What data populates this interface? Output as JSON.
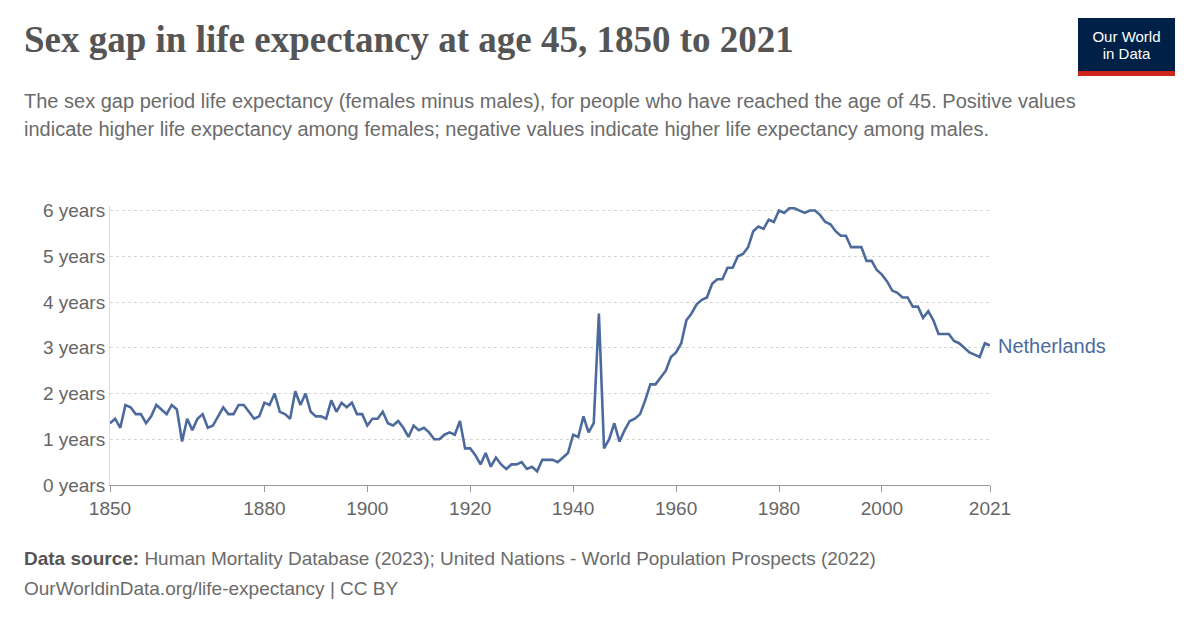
{
  "chart_data": {
    "type": "line",
    "title": "Sex gap in life expectancy at age 45, 1850 to 2021",
    "subtitle": "The sex gap period life expectancy (females minus males), for people who have reached the age of 45. Positive values indicate higher life expectancy among females; negative values indicate higher life expectancy among males.",
    "logo": [
      "Our World",
      "in Data"
    ],
    "source_label": "Data source:",
    "source": "Human Mortality Database (2023); United Nations - World Population Prospects (2022)",
    "footer": "OurWorldinData.org/life-expectancy | CC BY",
    "grid": true,
    "x": [
      1850,
      1851,
      1852,
      1853,
      1854,
      1855,
      1856,
      1857,
      1858,
      1859,
      1860,
      1861,
      1862,
      1863,
      1864,
      1865,
      1866,
      1867,
      1868,
      1869,
      1870,
      1871,
      1872,
      1873,
      1874,
      1875,
      1876,
      1877,
      1878,
      1879,
      1880,
      1881,
      1882,
      1883,
      1884,
      1885,
      1886,
      1887,
      1888,
      1889,
      1890,
      1891,
      1892,
      1893,
      1894,
      1895,
      1896,
      1897,
      1898,
      1899,
      1900,
      1901,
      1902,
      1903,
      1904,
      1905,
      1906,
      1907,
      1908,
      1909,
      1910,
      1911,
      1912,
      1913,
      1914,
      1915,
      1916,
      1917,
      1918,
      1919,
      1920,
      1921,
      1922,
      1923,
      1924,
      1925,
      1926,
      1927,
      1928,
      1929,
      1930,
      1931,
      1932,
      1933,
      1934,
      1935,
      1936,
      1937,
      1938,
      1939,
      1940,
      1941,
      1942,
      1943,
      1944,
      1945,
      1946,
      1947,
      1948,
      1949,
      1950,
      1951,
      1952,
      1953,
      1954,
      1955,
      1956,
      1957,
      1958,
      1959,
      1960,
      1961,
      1962,
      1963,
      1964,
      1965,
      1966,
      1967,
      1968,
      1969,
      1970,
      1971,
      1972,
      1973,
      1974,
      1975,
      1976,
      1977,
      1978,
      1979,
      1980,
      1981,
      1982,
      1983,
      1984,
      1985,
      1986,
      1987,
      1988,
      1989,
      1990,
      1991,
      1992,
      1993,
      1994,
      1995,
      1996,
      1997,
      1998,
      1999,
      2000,
      2001,
      2002,
      2003,
      2004,
      2005,
      2006,
      2007,
      2008,
      2009,
      2010,
      2011,
      2012,
      2013,
      2014,
      2015,
      2016,
      2017,
      2018,
      2019,
      2020,
      2021
    ],
    "series": [
      {
        "name": "Netherlands",
        "color": "#4c6a9c",
        "line_style": "solid",
        "values": [
          1.35,
          1.45,
          1.25,
          1.75,
          1.7,
          1.55,
          1.55,
          1.35,
          1.5,
          1.75,
          1.65,
          1.55,
          1.75,
          1.65,
          0.95,
          1.45,
          1.2,
          1.45,
          1.55,
          1.25,
          1.3,
          1.5,
          1.7,
          1.55,
          1.55,
          1.75,
          1.75,
          1.6,
          1.45,
          1.5,
          1.8,
          1.75,
          2.0,
          1.6,
          1.55,
          1.45,
          2.05,
          1.75,
          2.0,
          1.6,
          1.5,
          1.5,
          1.45,
          1.85,
          1.6,
          1.8,
          1.7,
          1.8,
          1.55,
          1.55,
          1.3,
          1.45,
          1.45,
          1.6,
          1.35,
          1.3,
          1.4,
          1.25,
          1.05,
          1.3,
          1.2,
          1.25,
          1.15,
          1.0,
          1.0,
          1.1,
          1.15,
          1.1,
          1.4,
          0.8,
          0.8,
          0.65,
          0.45,
          0.7,
          0.4,
          0.6,
          0.45,
          0.35,
          0.45,
          0.45,
          0.5,
          0.35,
          0.4,
          0.3,
          0.55,
          0.55,
          0.55,
          0.5,
          0.6,
          0.7,
          1.1,
          1.05,
          1.5,
          1.15,
          1.35,
          3.75,
          0.8,
          1.0,
          1.35,
          0.95,
          1.2,
          1.4,
          1.45,
          1.55,
          1.85,
          2.2,
          2.2,
          2.35,
          2.5,
          2.8,
          2.9,
          3.1,
          3.6,
          3.75,
          3.95,
          4.05,
          4.1,
          4.4,
          4.5,
          4.5,
          4.75,
          4.75,
          5.0,
          5.05,
          5.2,
          5.55,
          5.65,
          5.6,
          5.8,
          5.75,
          6.0,
          5.95,
          6.05,
          6.05,
          6.0,
          5.95,
          6.0,
          6.0,
          5.9,
          5.75,
          5.7,
          5.55,
          5.45,
          5.45,
          5.2,
          5.2,
          5.2,
          4.9,
          4.9,
          4.7,
          4.6,
          4.45,
          4.25,
          4.2,
          4.1,
          4.1,
          3.9,
          3.9,
          3.65,
          3.8,
          3.6,
          3.3,
          3.3,
          3.3,
          3.15,
          3.1,
          3.0,
          2.9,
          2.85,
          2.8,
          3.1,
          3.05
        ]
      }
    ],
    "xlim": [
      1850,
      2021
    ],
    "xticks": [
      1850,
      1880,
      1900,
      1920,
      1940,
      1960,
      1980,
      2000,
      2021
    ],
    "ylim": [
      0,
      6.1
    ],
    "yticks": [
      {
        "value": 0,
        "label": "0 years"
      },
      {
        "value": 1,
        "label": "1 years"
      },
      {
        "value": 2,
        "label": "2 years"
      },
      {
        "value": 3,
        "label": "3 years"
      },
      {
        "value": 4,
        "label": "4 years"
      },
      {
        "value": 5,
        "label": "5 years"
      },
      {
        "value": 6,
        "label": "6 years"
      }
    ]
  }
}
